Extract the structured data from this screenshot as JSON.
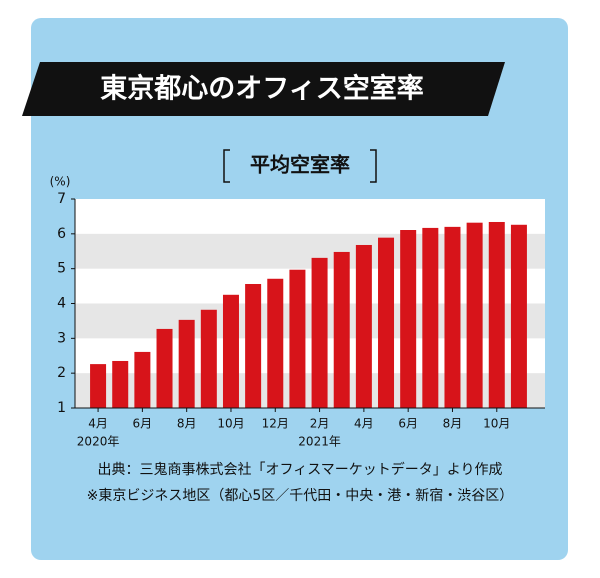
{
  "chart_data": {
    "type": "bar",
    "title": "東京都心のオフィス空室率",
    "subtitle": "平均空室率",
    "y_unit": "(%)",
    "categories": [
      "4月",
      null,
      "6月",
      null,
      "8月",
      null,
      "10月",
      null,
      "12月",
      null,
      "2月",
      null,
      "4月",
      null,
      "6月",
      null,
      "8月",
      null,
      "10月",
      null
    ],
    "year_labels": [
      "2020年",
      null,
      null,
      null,
      null,
      null,
      null,
      null,
      null,
      null,
      "2021年",
      null,
      null,
      null,
      null,
      null,
      null,
      null,
      null,
      null
    ],
    "values": [
      2.26,
      2.35,
      2.61,
      3.27,
      3.53,
      3.82,
      4.25,
      4.56,
      4.71,
      4.97,
      5.31,
      5.48,
      5.68,
      5.89,
      6.11,
      6.17,
      6.2,
      6.32,
      6.34,
      6.26
    ],
    "color": "#d7141a",
    "ylim": [
      1,
      7
    ],
    "yticks": [
      1,
      2,
      3,
      4,
      5,
      6,
      7
    ],
    "source": "出典：三鬼商事株式会社「オフィスマーケットデータ」より作成",
    "note": "※東京ビジネス地区（都心5区／千代田・中央・港・新宿・渋谷区）"
  }
}
